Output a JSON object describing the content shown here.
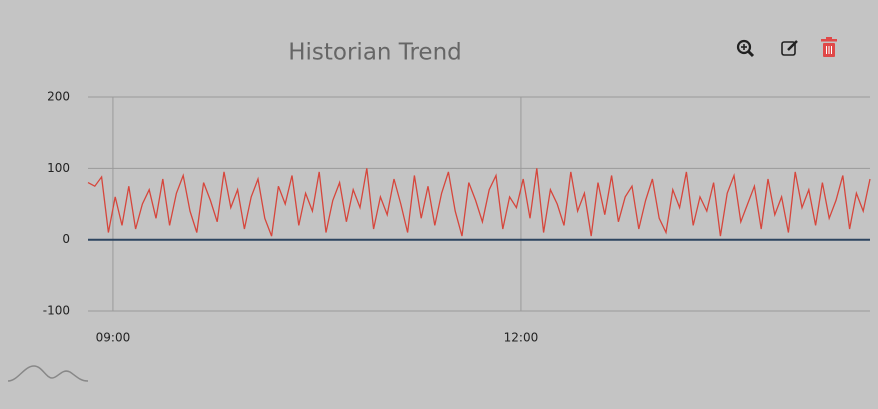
{
  "chart_data": {
    "type": "line",
    "title": "Historian Trend",
    "x": [
      529,
      532,
      535,
      538,
      541,
      544,
      547,
      550,
      553,
      556,
      559,
      562,
      565,
      568,
      571,
      574,
      577,
      580,
      583,
      586,
      589,
      592,
      595,
      598,
      601,
      604,
      607,
      610,
      613,
      616,
      619,
      622,
      625,
      628,
      631,
      634,
      637,
      640,
      643,
      646,
      649,
      652,
      655,
      658,
      661,
      664,
      667,
      670,
      673,
      676,
      679,
      682,
      685,
      688,
      691,
      694,
      697,
      700,
      703,
      706,
      709,
      712,
      715,
      718,
      721,
      724,
      727,
      730,
      733,
      736,
      739,
      742,
      745,
      748,
      751,
      754,
      757,
      760,
      763,
      766,
      769,
      772,
      775,
      778,
      781,
      784,
      787,
      790,
      793,
      796,
      799,
      802,
      805,
      808,
      811,
      814,
      817,
      820,
      823,
      826,
      829,
      832,
      835,
      838,
      841,
      844,
      847,
      850,
      853,
      856,
      859,
      862,
      865,
      868,
      871,
      874
    ],
    "series": [
      {
        "color": "#d6463c",
        "values": [
          80,
          75,
          88,
          10,
          60,
          20,
          75,
          15,
          50,
          70,
          30,
          85,
          20,
          65,
          90,
          40,
          10,
          80,
          55,
          25,
          95,
          45,
          70,
          15,
          60,
          85,
          30,
          5,
          75,
          50,
          90,
          20,
          65,
          40,
          95,
          10,
          55,
          80,
          25,
          70,
          45,
          100,
          15,
          60,
          35,
          85,
          50,
          10,
          90,
          30,
          75,
          20,
          65,
          95,
          40,
          5,
          80,
          55,
          25,
          70,
          90,
          15,
          60,
          45,
          85,
          30,
          100,
          10,
          70,
          50,
          20,
          95,
          40,
          65,
          5,
          80,
          35,
          90,
          25,
          60,
          75,
          15,
          55,
          85,
          30,
          10,
          70,
          45,
          95,
          20,
          60,
          40,
          80,
          5,
          65,
          90,
          25,
          50,
          75,
          15,
          85,
          35,
          60,
          10,
          95,
          45,
          70,
          20,
          80,
          30,
          55,
          90,
          15,
          65,
          40,
          85
        ]
      },
      {
        "color": "#2d4560",
        "values": [
          0,
          0,
          0,
          0,
          0,
          0,
          0,
          0,
          0,
          0,
          0,
          0,
          0,
          0,
          0,
          0,
          0,
          0,
          0,
          0,
          0,
          0,
          0,
          0,
          0,
          0,
          0,
          0,
          0,
          0,
          0,
          0,
          0,
          0,
          0,
          0,
          0,
          0,
          0,
          0,
          0,
          0,
          0,
          0,
          0,
          0,
          0,
          0,
          0,
          0,
          0,
          0,
          0,
          0,
          0,
          0,
          0,
          0,
          0,
          0,
          0,
          0,
          0,
          0,
          0,
          0,
          0,
          0,
          0,
          0,
          0,
          0,
          0,
          0,
          0,
          0,
          0,
          0,
          0,
          0,
          0,
          0,
          0,
          0,
          0,
          0,
          0,
          0,
          0,
          0,
          0,
          0,
          0,
          0,
          0,
          0,
          0,
          0,
          0,
          0,
          0,
          0,
          0,
          0,
          0,
          0,
          0,
          0,
          0,
          0,
          0,
          0,
          0,
          0,
          0,
          0
        ]
      }
    ],
    "xlim": [
      529,
      874
    ],
    "xticks": [
      {
        "value": 540,
        "label": "09:00"
      },
      {
        "value": 720,
        "label": "12:00"
      }
    ],
    "ylim": [
      -100,
      200
    ],
    "yticks": [
      -100,
      0,
      100,
      200
    ],
    "grid": true
  }
}
